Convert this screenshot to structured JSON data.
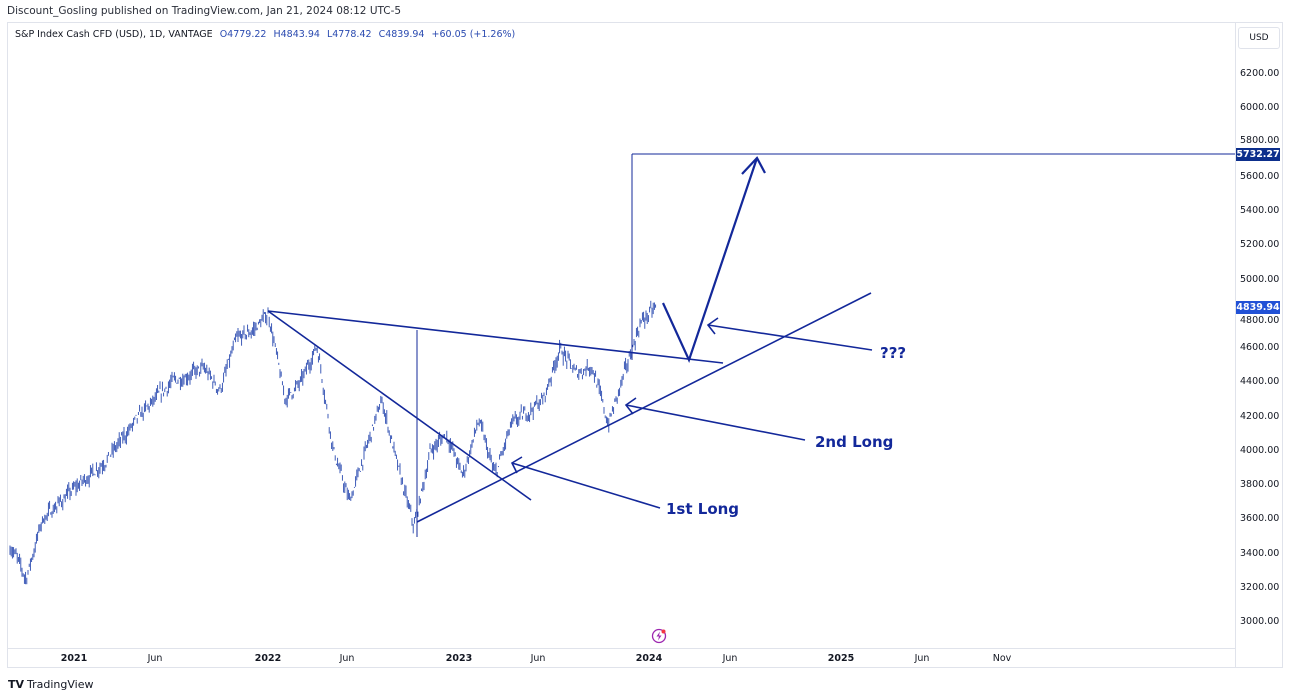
{
  "header": {
    "published": "Discount_Gosling published on TradingView.com, Jan 21, 2024 08:12 UTC-5"
  },
  "legend": {
    "symbol": "S&P Index Cash CFD (USD), 1D, VANTAGE",
    "open": "O4779.22",
    "high": "H4843.94",
    "low": "L4778.42",
    "close": "C4839.94",
    "change": "+60.05 (+1.26%)"
  },
  "price_axis": {
    "currency": "USD",
    "ticks": [
      "6200.00",
      "6000.00",
      "5800.00",
      "5600.00",
      "5400.00",
      "5200.00",
      "5000.00",
      "4800.00",
      "4600.00",
      "4400.00",
      "4200.00",
      "4000.00",
      "3800.00",
      "3600.00",
      "3400.00",
      "3200.00",
      "3000.00"
    ],
    "target_label": "5732.27",
    "last_price_label": "4839.94"
  },
  "time_axis": {
    "ticks": [
      "2021",
      "Jun",
      "2022",
      "Jun",
      "2023",
      "Jun",
      "2024",
      "Jun",
      "2025",
      "Jun",
      "Nov"
    ]
  },
  "annotations": {
    "first_long": "1st Long",
    "second_long": "2nd Long",
    "question": "???"
  },
  "footer": {
    "logo_text": "TradingView"
  },
  "colors": {
    "series": "#2a4ab0",
    "drawing": "#13289a",
    "target": "#0d2f8c",
    "last": "#2151d6"
  },
  "chart_data": {
    "type": "line",
    "title": "S&P Index Cash CFD (USD), 1D, VANTAGE",
    "xlabel": "",
    "ylabel": "USD",
    "ylim": [
      3000,
      6200
    ],
    "grid": false,
    "x": [
      "2020-09",
      "2020-10",
      "2020-11",
      "2021-01",
      "2021-03",
      "2021-05",
      "2021-07",
      "2021-09",
      "2021-10",
      "2021-11",
      "2021-12",
      "2022-01",
      "2022-02",
      "2022-03",
      "2022-04",
      "2022-05",
      "2022-06",
      "2022-08",
      "2022-09",
      "2022-10",
      "2022-11",
      "2022-12",
      "2023-01",
      "2023-02",
      "2023-03",
      "2023-04",
      "2023-06",
      "2023-07",
      "2023-08",
      "2023-09",
      "2023-10",
      "2023-11",
      "2023-12",
      "2024-01"
    ],
    "series": [
      {
        "name": "S&P 500 close (approx.)",
        "values": [
          3450,
          3250,
          3600,
          3780,
          3950,
          4200,
          4400,
          4480,
          4350,
          4650,
          4700,
          4800,
          4300,
          4400,
          4620,
          4000,
          3700,
          4300,
          3900,
          3550,
          4000,
          4100,
          3850,
          4180,
          3850,
          4150,
          4300,
          4600,
          4450,
          4500,
          4150,
          4450,
          4750,
          4840
        ]
      }
    ],
    "target_price": 5732.27,
    "last_price": 4839.94
  }
}
